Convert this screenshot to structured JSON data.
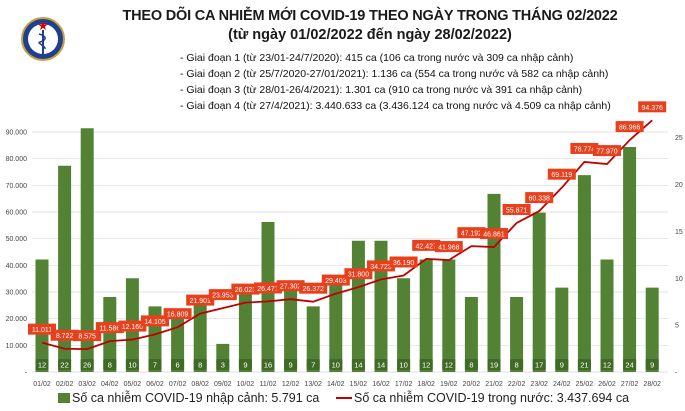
{
  "header": {
    "title": "THEO DÕI CA NHIỄM MỚI COVID-19 THEO NGÀY TRONG THÁNG 02/2022",
    "subtitle": "(từ ngày 01/02/2022 đến ngày 28/02/2022)",
    "logo_text": "BỘ Y TẾ",
    "phases": [
      "- Giai đoạn 1 (từ 23/01-24/7/2020): 415 ca (106 ca trong nước và 309 ca nhập cảnh)",
      "- Giai đoạn 2 (từ 25/7/2020-27/01/2021): 1.136 ca (554 ca trong nước và 582 ca nhập cảnh)",
      "- Giai đoạn 3 (từ 28/01-26/4/2021): 1.301 ca (910 ca trong nước và 391 ca nhập cảnh)",
      "- Giai đoạn 4 (từ 27/4/2021): 3.440.633 ca (3.436.124 ca trong nước và 4.509 ca nhập cảnh)"
    ]
  },
  "colors": {
    "bar": "#548235",
    "bar_label_bg": "#3f6b26",
    "line": "#c00000",
    "line_label_bg": "#e8401c",
    "grid": "#d9d9d9"
  },
  "chart_data": {
    "type": "bar+line",
    "categories": [
      "01/02",
      "02/02",
      "03/02",
      "04/02",
      "05/02",
      "06/02",
      "07/02",
      "08/02",
      "09/02",
      "10/02",
      "11/02",
      "12/02",
      "13/02",
      "14/02",
      "15/02",
      "16/02",
      "17/02",
      "18/02",
      "19/02",
      "20/02",
      "21/02",
      "22/02",
      "23/02",
      "24/02",
      "25/02",
      "26/02",
      "27/02",
      "28/02"
    ],
    "series": [
      {
        "name": "Số ca nhiễm COVID-19 nhập cảnh: 5.791 ca",
        "type": "bar",
        "axis": "right",
        "values": [
          12,
          22,
          26,
          8,
          10,
          7,
          6,
          8,
          3,
          9,
          16,
          9,
          7,
          10,
          14,
          14,
          10,
          12,
          12,
          8,
          19,
          8,
          17,
          9,
          21,
          12,
          24,
          9
        ],
        "labels": [
          "12",
          "22",
          "26",
          "8",
          "10",
          "7",
          "6",
          "8",
          "3",
          "9",
          "16",
          "9",
          "7",
          "10",
          "14",
          "14",
          "10",
          "12",
          "12",
          "8",
          "19",
          "8",
          "17",
          "9",
          "21",
          "12",
          "24",
          "9"
        ]
      },
      {
        "name": "Số ca nhiễm COVID-19 trong nước: 3.437.694 ca",
        "type": "line",
        "axis": "left",
        "values": [
          11011,
          8722,
          8575,
          11586,
          12160,
          14105,
          16809,
          21901,
          23953,
          26023,
          26471,
          27302,
          26372,
          29403,
          31800,
          34723,
          36190,
          42427,
          41968,
          47192,
          46861,
          55871,
          60338,
          69119,
          78774,
          77970,
          86966,
          94376
        ],
        "labels": [
          "11.011",
          "8.722",
          "8.575",
          "11.586",
          "12.160",
          "14.105",
          "16.809",
          "21.901",
          "23.953",
          "26.023",
          "26.471",
          "27.302",
          "26.372",
          "29.403",
          "31.800",
          "34.723",
          "36.190",
          "42.427",
          "41.968",
          "47.192",
          "46.861",
          "55.871",
          "60.338",
          "69.119",
          "78.774",
          "77.970",
          "86.966",
          "94.376"
        ]
      }
    ],
    "left_axis": {
      "ylim": [
        0,
        90000
      ],
      "ticks": [
        "-",
        "10.000",
        "20.000",
        "30.000",
        "40.000",
        "50.000",
        "60.000",
        "70.000",
        "80.000",
        "90.000"
      ]
    },
    "right_axis": {
      "ylim": [
        0,
        25.6
      ],
      "ticks": [
        "-",
        "5",
        "10",
        "15",
        "20",
        "25"
      ]
    },
    "grid": true,
    "legend": "bottom"
  }
}
